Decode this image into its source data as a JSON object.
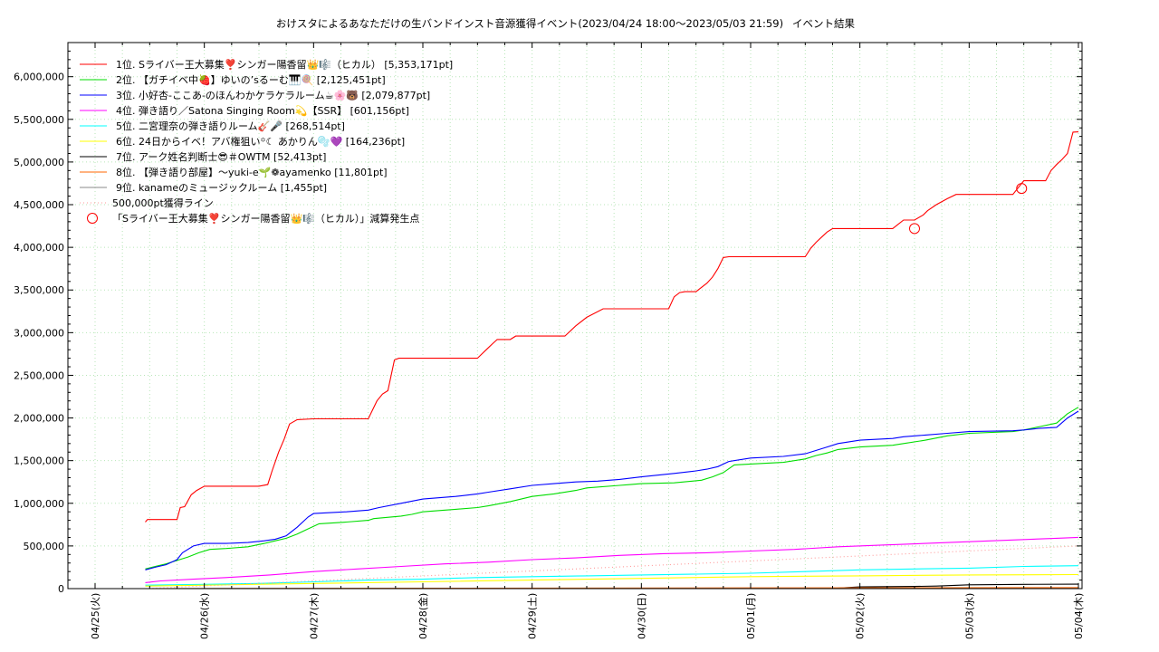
{
  "chart_data": {
    "type": "line",
    "title": "おけスタによるあなただけの生バンドインスト音源獲得イベント(2023/04/24 18:00〜2023/05/03 21:59)",
    "subtitle": "イベント結果",
    "ylim": [
      0,
      6400000
    ],
    "yticks": [
      0,
      500000,
      1000000,
      1500000,
      2000000,
      2500000,
      3000000,
      3500000,
      4000000,
      4500000,
      5000000,
      5500000,
      6000000
    ],
    "ytick_labels": [
      "0",
      "500,000",
      "1,000,000",
      "1,500,000",
      "2,000,000",
      "2,500,000",
      "3,000,000",
      "3,500,000",
      "4,000,000",
      "4,500,000",
      "5,000,000",
      "5,500,000",
      "6,000,000"
    ],
    "xlim": [
      0,
      9.0
    ],
    "xticks": [
      0,
      1,
      2,
      3,
      4,
      5,
      6,
      7,
      8,
      9
    ],
    "xtick_labels": [
      "04/25(火)",
      "04/26(水)",
      "04/27(木)",
      "04/28(金)",
      "04/29(土)",
      "04/30(日)",
      "05/01(月)",
      "05/02(火)",
      "05/03(水)",
      "05/04(木)"
    ],
    "grid": true,
    "legend_position": "top-left",
    "series": [
      {
        "name": "1位. Sライバー王大募集❣️シンガー陽香留👑🎼（ヒカル） [5,353,171pt]",
        "color": "#ff0000",
        "x": [
          0.46,
          0.48,
          0.75,
          0.78,
          0.82,
          0.88,
          0.93,
          1.0,
          1.5,
          1.58,
          1.62,
          1.68,
          1.73,
          1.78,
          1.85,
          2.0,
          2.5,
          2.58,
          2.63,
          2.68,
          2.74,
          2.78,
          2.83,
          3.0,
          3.5,
          3.58,
          3.63,
          3.68,
          3.75,
          3.8,
          3.85,
          4.0,
          4.3,
          4.4,
          4.5,
          4.65,
          4.7,
          4.75,
          4.8,
          4.85,
          4.9,
          5.0,
          5.25,
          5.3,
          5.35,
          5.4,
          5.5,
          5.6,
          5.65,
          5.7,
          5.75,
          5.8,
          6.0,
          6.5,
          6.55,
          6.6,
          6.65,
          6.7,
          6.75,
          7.0,
          7.3,
          7.35,
          7.4,
          7.5,
          7.58,
          7.62,
          7.7,
          7.8,
          7.88,
          7.92,
          8.0,
          8.4,
          8.45,
          8.5,
          8.7,
          8.75,
          8.8,
          8.85,
          8.9,
          8.95,
          9.0
        ],
        "y": [
          780000,
          810000,
          810000,
          950000,
          960000,
          1100000,
          1150000,
          1200000,
          1200000,
          1220000,
          1380000,
          1600000,
          1750000,
          1930000,
          1980000,
          1990000,
          1990000,
          2200000,
          2280000,
          2320000,
          2680000,
          2700000,
          2700000,
          2700000,
          2700000,
          2800000,
          2860000,
          2920000,
          2920000,
          2920000,
          2960000,
          2960000,
          2960000,
          3080000,
          3180000,
          3280000,
          3280000,
          3280000,
          3280000,
          3280000,
          3280000,
          3280000,
          3280000,
          3420000,
          3470000,
          3480000,
          3480000,
          3580000,
          3650000,
          3750000,
          3880000,
          3890000,
          3890000,
          3890000,
          3990000,
          4060000,
          4120000,
          4180000,
          4220000,
          4220000,
          4220000,
          4270000,
          4320000,
          4320000,
          4380000,
          4430000,
          4500000,
          4570000,
          4620000,
          4620000,
          4620000,
          4620000,
          4700000,
          4780000,
          4780000,
          4900000,
          4970000,
          5030000,
          5100000,
          5350000,
          5353171
        ]
      },
      {
        "name": "2位. 【ガチイベ中🍓】ゆいの’sるーむ🎹🍭 [2,125,451pt]",
        "color": "#00dd00",
        "x": [
          0.46,
          0.55,
          0.65,
          0.75,
          0.85,
          0.95,
          1.05,
          1.2,
          1.4,
          1.55,
          1.65,
          1.75,
          1.85,
          1.95,
          2.05,
          2.3,
          2.5,
          2.55,
          2.8,
          2.9,
          3.0,
          3.3,
          3.5,
          3.6,
          3.8,
          4.0,
          4.2,
          4.4,
          4.5,
          4.8,
          4.9,
          5.0,
          5.3,
          5.55,
          5.65,
          5.75,
          5.85,
          6.0,
          6.3,
          6.5,
          6.6,
          6.7,
          6.8,
          7.0,
          7.3,
          7.4,
          7.6,
          7.8,
          8.0,
          8.4,
          8.5,
          8.65,
          8.8,
          8.9,
          9.0
        ],
        "y": [
          230000,
          260000,
          290000,
          330000,
          370000,
          420000,
          460000,
          470000,
          490000,
          530000,
          560000,
          590000,
          640000,
          700000,
          760000,
          780000,
          800000,
          820000,
          850000,
          870000,
          900000,
          930000,
          950000,
          970000,
          1020000,
          1080000,
          1110000,
          1150000,
          1180000,
          1210000,
          1220000,
          1230000,
          1240000,
          1270000,
          1310000,
          1360000,
          1450000,
          1460000,
          1480000,
          1520000,
          1560000,
          1590000,
          1630000,
          1660000,
          1680000,
          1700000,
          1740000,
          1790000,
          1820000,
          1840000,
          1860000,
          1900000,
          1940000,
          2050000,
          2125451
        ]
      },
      {
        "name": "3位. 小好杏-ここあ-のほんわかケラケラルーム☕🌸🐻 [2,079,877pt]",
        "color": "#0000ff",
        "x": [
          0.46,
          0.55,
          0.65,
          0.75,
          0.8,
          0.9,
          1.0,
          1.2,
          1.4,
          1.55,
          1.65,
          1.75,
          1.85,
          1.95,
          2.0,
          2.3,
          2.5,
          2.6,
          2.8,
          3.0,
          3.3,
          3.5,
          3.6,
          3.8,
          4.0,
          4.2,
          4.4,
          4.6,
          4.8,
          5.0,
          5.3,
          5.5,
          5.6,
          5.7,
          5.8,
          6.0,
          6.3,
          6.5,
          6.6,
          6.7,
          6.8,
          7.0,
          7.3,
          7.4,
          7.6,
          7.8,
          8.0,
          8.4,
          8.5,
          8.65,
          8.8,
          8.9,
          9.0
        ],
        "y": [
          220000,
          250000,
          280000,
          340000,
          420000,
          500000,
          530000,
          530000,
          540000,
          560000,
          580000,
          620000,
          720000,
          840000,
          880000,
          900000,
          920000,
          950000,
          1000000,
          1050000,
          1080000,
          1110000,
          1130000,
          1170000,
          1210000,
          1230000,
          1250000,
          1260000,
          1280000,
          1310000,
          1350000,
          1380000,
          1400000,
          1430000,
          1490000,
          1530000,
          1550000,
          1580000,
          1620000,
          1660000,
          1700000,
          1740000,
          1760000,
          1780000,
          1800000,
          1820000,
          1840000,
          1850000,
          1860000,
          1880000,
          1890000,
          2000000,
          2079877
        ]
      },
      {
        "name": "4位. 弾き語り／Satona Singing Room💫【SSR】 [601,156pt]",
        "color": "#ff00ff",
        "x": [
          0.46,
          0.6,
          0.9,
          1.2,
          1.6,
          2.0,
          2.4,
          2.8,
          3.2,
          3.6,
          4.0,
          4.4,
          4.8,
          5.2,
          5.6,
          6.0,
          6.4,
          6.8,
          7.2,
          7.6,
          8.0,
          8.4,
          8.8,
          9.0
        ],
        "y": [
          70000,
          90000,
          110000,
          130000,
          160000,
          200000,
          230000,
          260000,
          290000,
          310000,
          340000,
          360000,
          390000,
          410000,
          420000,
          440000,
          460000,
          490000,
          510000,
          530000,
          550000,
          570000,
          590000,
          601156
        ]
      },
      {
        "name": "5位. 二宮理奈の弾き語りルーム🎸🎤 [268,514pt]",
        "color": "#00ffff",
        "x": [
          0.46,
          1.0,
          1.5,
          2.0,
          2.5,
          3.0,
          3.5,
          4.0,
          4.5,
          5.0,
          5.5,
          6.0,
          6.5,
          7.0,
          7.5,
          8.0,
          8.5,
          9.0
        ],
        "y": [
          40000,
          50000,
          60000,
          80000,
          100000,
          110000,
          130000,
          140000,
          150000,
          160000,
          170000,
          180000,
          200000,
          220000,
          230000,
          240000,
          260000,
          268514
        ]
      },
      {
        "name": "6位. 24日からイベ！アバ権狙い꙳☾ あかりん🫧💜 [164,236pt]",
        "color": "#ffff00",
        "x": [
          0.46,
          1.0,
          2.0,
          3.0,
          4.0,
          5.0,
          6.0,
          7.0,
          8.0,
          9.0
        ],
        "y": [
          30000,
          40000,
          60000,
          80000,
          100000,
          120000,
          140000,
          150000,
          160000,
          164236
        ]
      },
      {
        "name": "7位. アーク姓名判断士😎＃OWTM [52,413pt]",
        "color": "#000000",
        "x": [
          0.46,
          3.0,
          6.0,
          6.8,
          7.0,
          7.5,
          7.7,
          8.0,
          8.5,
          9.0
        ],
        "y": [
          0,
          1000,
          3000,
          6000,
          20000,
          26000,
          30000,
          45000,
          50000,
          52413
        ]
      },
      {
        "name": "8位. 【弾き語り部屋】〜yuki-e🌱❁ayamenko [11,801pt]",
        "color": "#ff6600",
        "x": [
          0.46,
          3.0,
          6.0,
          9.0
        ],
        "y": [
          0,
          4000,
          8000,
          11801
        ]
      },
      {
        "name": "9位. kanameのミュージックルーム [1,455pt]",
        "color": "#888888",
        "x": [
          0.46,
          9.0
        ],
        "y": [
          0,
          1455
        ]
      },
      {
        "name": "500,000pt獲得ライン",
        "color": "#ff9999",
        "dotted": true,
        "x": [
          0.46,
          9.0
        ],
        "y": [
          0,
          500000
        ]
      }
    ],
    "markers": {
      "name": "「Sライバー王大募集❣️シンガー陽香留👑🎼（ヒカル）」減算発生点",
      "color": "#ff0000",
      "points": [
        {
          "x": 7.5,
          "y": 4220000
        },
        {
          "x": 8.48,
          "y": 4690000
        }
      ]
    }
  }
}
